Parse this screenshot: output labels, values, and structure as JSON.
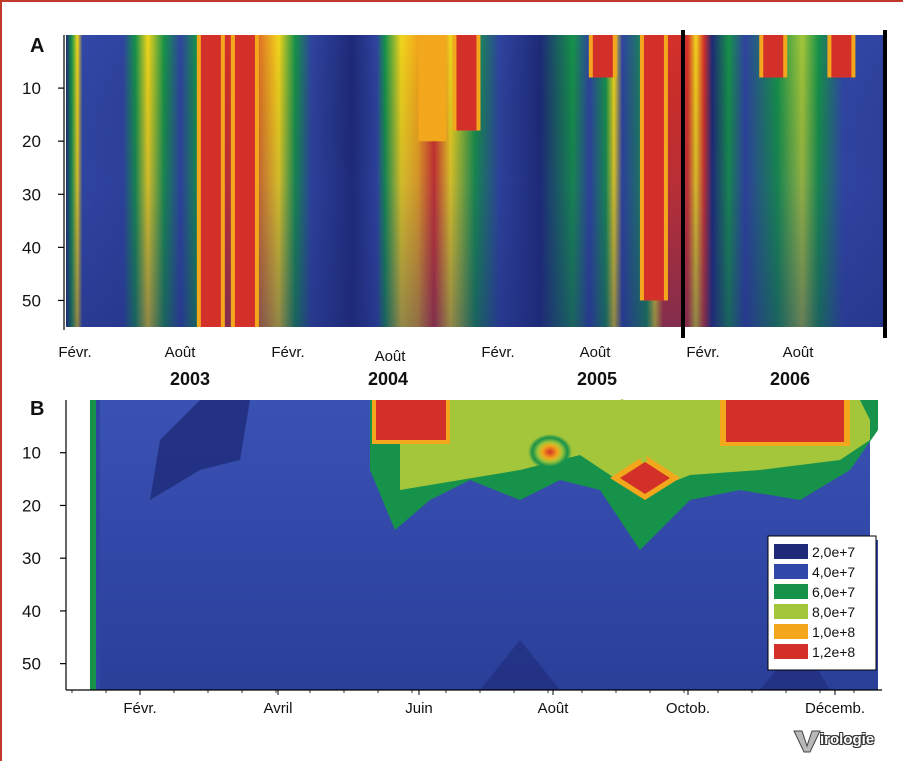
{
  "colors": {
    "c1": "#1e2a78",
    "c2": "#3248a8",
    "c3": "#16924a",
    "c4": "#a4c63a",
    "c5": "#f2a71c",
    "c6": "#d4302a",
    "frame": "#c0392b"
  },
  "chart_data": [
    {
      "type": "heatmap",
      "panel_label": "A",
      "y_ticks": [
        "10",
        "20",
        "30",
        "40",
        "50"
      ],
      "y_range": [
        0,
        55
      ],
      "x_ticks": [
        "Févr.",
        "Août",
        "Févr.",
        "Août",
        "Févr.",
        "Août",
        "Févr.",
        "Août"
      ],
      "years": [
        "2003",
        "2004",
        "2005",
        "2006"
      ],
      "hot_bands": [
        {
          "month_index": 8,
          "level": 6,
          "depth_max": 55
        },
        {
          "month_index": 10,
          "level": 6,
          "depth_max": 55
        },
        {
          "month_index": 21,
          "level": 5,
          "depth_max": 20
        },
        {
          "month_index": 23,
          "level": 6,
          "depth_max": 18
        },
        {
          "month_index": 31,
          "level": 6,
          "depth_max": 8
        },
        {
          "month_index": 34,
          "level": 6,
          "depth_max": 50
        },
        {
          "month_index": 41,
          "level": 6,
          "depth_max": 8
        },
        {
          "month_index": 45,
          "level": 6,
          "depth_max": 8
        }
      ]
    },
    {
      "type": "heatmap",
      "panel_label": "B",
      "y_ticks": [
        "10",
        "20",
        "30",
        "40",
        "50"
      ],
      "y_range": [
        0,
        55
      ],
      "x_ticks": [
        "Févr.",
        "Avril",
        "Juin",
        "Août",
        "Octob.",
        "Décemb."
      ],
      "legend": [
        "2,0e+7",
        "4,0e+7",
        "6,0e+7",
        "8,0e+7",
        "1,0e+8",
        "1,2e+8"
      ],
      "hot_spots": [
        {
          "month": "Juin",
          "depth": 5,
          "value": "1,2e+8"
        },
        {
          "month": "Août",
          "depth": 10,
          "value": "1,0e+8"
        },
        {
          "month": "Sept.",
          "depth": 15,
          "value": "1,2e+8"
        },
        {
          "month": "Novemb.",
          "depth": 5,
          "value": "1,2e+8"
        }
      ]
    }
  ],
  "logo": {
    "text": "irologie"
  }
}
